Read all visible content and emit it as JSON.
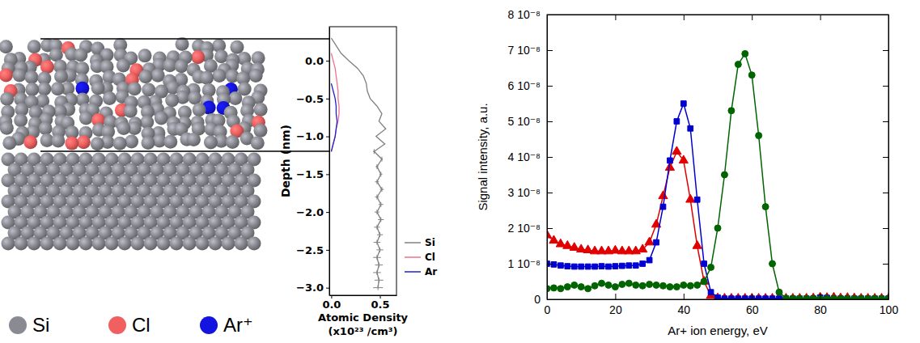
{
  "illustration": {
    "legend": [
      {
        "label": "Si",
        "color": "#8a8a92"
      },
      {
        "label": "Cl",
        "color": "#f06060"
      },
      {
        "label": "Ar⁺",
        "color": "#1414e0"
      }
    ]
  },
  "chart_data": [
    {
      "type": "line",
      "y_label": "Depth (nm)",
      "x_label": "Atomic Density (x10²³ /cm³)",
      "xlim": [
        -0.02,
        0.67
      ],
      "ylim": [
        -3.1,
        0.45
      ],
      "xticks": [
        {
          "value": 0,
          "label": "0.0"
        },
        0.5
      ],
      "yticks": [
        {
          "value": 0,
          "label": "0.0"
        },
        {
          "value": -0.5,
          "label": "−0.5"
        },
        {
          "value": -1,
          "label": "−1.0"
        },
        {
          "value": -1.5,
          "label": "−1.5"
        },
        {
          "value": -2,
          "label": "−2.0"
        },
        {
          "value": -2.5,
          "label": "−2.5"
        },
        {
          "value": -3,
          "label": "−3.0"
        }
      ],
      "legend": "right",
      "series": [
        {
          "name": "Si",
          "color": "#808080",
          "x": [
            0,
            0.05,
            0.1,
            0.18,
            0.27,
            0.33,
            0.36,
            0.37,
            0.4,
            0.47,
            0.52,
            0.49,
            0.56,
            0.46,
            0.55,
            0.44,
            0.52,
            0.47,
            0.51,
            0.47,
            0.52,
            0.47,
            0.51,
            0.47,
            0.51,
            0.47,
            0.5,
            0.47,
            0.5,
            0.47,
            0.49,
            0.47,
            0.49,
            0.48
          ],
          "values": [
            0.3,
            0.2,
            0.1,
            0,
            -0.1,
            -0.2,
            -0.3,
            -0.4,
            -0.5,
            -0.6,
            -0.7,
            -0.8,
            -0.9,
            -1,
            -1.1,
            -1.2,
            -1.3,
            -1.4,
            -1.5,
            -1.6,
            -1.7,
            -1.8,
            -1.9,
            -2,
            -2.1,
            -2.2,
            -2.3,
            -2.4,
            -2.5,
            -2.6,
            -2.7,
            -2.8,
            -2.9,
            -3
          ],
          "errors": [
            null,
            null,
            null,
            null,
            null,
            null,
            null,
            null,
            null,
            null,
            null,
            null,
            null,
            null,
            null,
            0.01,
            0.01,
            0.015,
            0.015,
            0.02,
            0.02,
            0.02,
            0.025,
            0.025,
            0.03,
            0.03,
            0.03,
            0.035,
            0.035,
            0.04,
            0.04,
            0.04,
            0.045,
            0.05
          ]
        },
        {
          "name": "Cl",
          "color": "#f07090",
          "x": [
            0,
            0.02,
            0.04,
            0.05,
            0.06,
            0.07,
            0.07,
            0.08,
            0.08,
            0.07,
            0.05,
            0.04,
            0.02,
            0
          ],
          "values": [
            0.1,
            0,
            -0.1,
            -0.2,
            -0.3,
            -0.4,
            -0.5,
            -0.6,
            -0.7,
            -0.8,
            -0.9,
            -1,
            -1.1,
            -1.2
          ]
        },
        {
          "name": "Ar",
          "color": "#2020d0",
          "x": [
            0,
            0.02,
            0.04,
            0.05,
            0.05,
            0.06,
            0.05,
            0.04,
            0.02,
            0
          ],
          "values": [
            -0.3,
            -0.4,
            -0.5,
            -0.6,
            -0.7,
            -0.8,
            -0.9,
            -1,
            -1.1,
            -1.2
          ]
        }
      ]
    },
    {
      "type": "line",
      "x_label": "Ar+ ion energy, eV",
      "y_label": "Signal intensity, a.u.",
      "xlim": [
        0,
        100
      ],
      "ylim": [
        0,
        8e-08
      ],
      "xticks": [
        0,
        20,
        40,
        60,
        80,
        100
      ],
      "yticks": [
        0,
        {
          "value": 1e-08,
          "label": "1 10⁻⁸"
        },
        {
          "value": 2e-08,
          "label": "2 10⁻⁸"
        },
        {
          "value": 3e-08,
          "label": "3 10⁻⁸"
        },
        {
          "value": 4e-08,
          "label": "4 10⁻⁸"
        },
        {
          "value": 5e-08,
          "label": "5 10⁻⁸"
        },
        {
          "value": 6e-08,
          "label": "6 10⁻⁸"
        },
        {
          "value": 7e-08,
          "label": "7 10⁻⁸"
        },
        {
          "value": 8e-08,
          "label": "8 10⁻⁸"
        }
      ],
      "x": [
        0,
        2,
        4,
        6,
        8,
        10,
        12,
        14,
        16,
        18,
        20,
        22,
        24,
        26,
        28,
        30,
        32,
        34,
        36,
        38,
        40,
        42,
        44,
        46,
        48,
        50,
        52,
        54,
        56,
        58,
        60,
        62,
        64,
        66,
        68,
        70,
        72,
        74,
        76,
        78,
        80,
        82,
        84,
        86,
        88,
        90,
        92,
        94,
        96,
        98,
        100
      ],
      "series": [
        {
          "color": "#e00000",
          "marker": "triangle",
          "values": [
            1.8e-08,
            1.65e-08,
            1.55e-08,
            1.5e-08,
            1.45e-08,
            1.4e-08,
            1.38e-08,
            1.35e-08,
            1.35e-08,
            1.35e-08,
            1.37e-08,
            1.35e-08,
            1.35e-08,
            1.35e-08,
            1.4e-08,
            1.6e-08,
            2.1e-08,
            2.9e-08,
            3.7e-08,
            4.15e-08,
            3.9e-08,
            2.8e-08,
            1.5e-08,
            5e-09,
            1e-09,
            3e-10,
            2e-10,
            2e-10,
            2e-10,
            2e-10,
            2e-10,
            2e-10,
            2e-10,
            2e-10,
            2e-10,
            2e-10,
            2e-10,
            2e-10,
            2e-10,
            3e-10,
            5e-10,
            4e-10,
            5e-10,
            3e-10,
            4e-10,
            3e-10,
            2e-10,
            2e-10,
            2e-10,
            2e-10,
            2e-10
          ]
        },
        {
          "color": "#0000d0",
          "marker": "square",
          "values": [
            1e-08,
            9.8e-09,
            9.5e-09,
            9.3e-09,
            9.2e-09,
            9.2e-09,
            9.2e-09,
            9.2e-09,
            9.3e-09,
            9.2e-09,
            9.3e-09,
            9.4e-09,
            9.5e-09,
            9.5e-09,
            1e-08,
            1.1e-08,
            1.6e-08,
            2.6e-08,
            3.9e-08,
            5e-08,
            5.5e-08,
            4.8e-08,
            2.8e-08,
            1e-08,
            2e-09,
            5e-10,
            2e-10,
            2e-10,
            2e-10,
            2e-10,
            2e-10,
            2e-10,
            2e-10,
            2e-10,
            2e-10,
            2e-10,
            2e-10,
            2e-10,
            2e-10,
            2e-10,
            5e-10,
            4e-10,
            2e-10,
            2e-10,
            2e-10,
            2e-10,
            2e-10,
            2e-10,
            2e-10,
            2e-10,
            2e-10
          ]
        },
        {
          "color": "#006400",
          "marker": "circle",
          "values": [
            3e-09,
            3.2e-09,
            3e-09,
            3.5e-09,
            4e-09,
            3.5e-09,
            3e-09,
            3.8e-09,
            4.5e-09,
            4e-09,
            3.5e-09,
            4.2e-09,
            4.5e-09,
            4e-09,
            3.8e-09,
            4.2e-09,
            4e-09,
            3.8e-09,
            3.5e-09,
            3.5e-09,
            4e-09,
            3.8e-09,
            4e-09,
            5e-09,
            9e-09,
            2e-08,
            3.5e-08,
            5.3e-08,
            6.6e-08,
            6.9e-08,
            6.3e-08,
            4.6e-08,
            2.6e-08,
            1e-08,
            2e-09,
            3e-10,
            2e-10,
            2e-10,
            2e-10,
            2e-10,
            2e-10,
            2e-10,
            2e-10,
            2e-10,
            2e-10,
            2e-10,
            2e-10,
            2e-10,
            2e-10,
            2e-10,
            2e-10
          ]
        }
      ]
    }
  ]
}
